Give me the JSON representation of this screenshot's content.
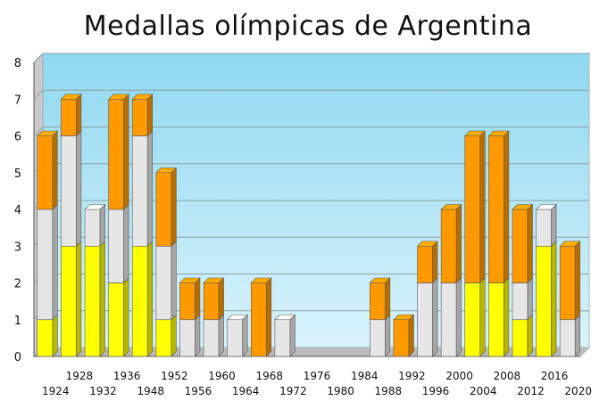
{
  "chart_data": {
    "type": "bar",
    "stacked": true,
    "title": "Medallas olímpicas de Argentina",
    "xlabel": "",
    "ylabel": "",
    "ylim": [
      0,
      8
    ],
    "yticks": [
      "0",
      "1",
      "2",
      "3",
      "4",
      "5",
      "6",
      "7",
      "8"
    ],
    "grid": true,
    "legend": "none",
    "categories": [
      "1924",
      "1928",
      "1932",
      "1936",
      "1948",
      "1952",
      "1956",
      "1960",
      "1964",
      "1968",
      "1972",
      "1976",
      "1980",
      "1984",
      "1988",
      "1992",
      "1996",
      "2000",
      "2004",
      "2008",
      "2012",
      "2016",
      "2020"
    ],
    "series": [
      {
        "color": "#ffff00",
        "values": [
          1,
          3,
          3,
          2,
          3,
          1,
          0,
          0,
          0,
          0,
          0,
          0,
          0,
          0,
          0,
          0,
          0,
          0,
          2,
          2,
          1,
          3,
          0
        ]
      },
      {
        "color": "#e6e6e6",
        "values": [
          3,
          3,
          1,
          2,
          3,
          2,
          1,
          1,
          1,
          0,
          1,
          0,
          0,
          0,
          1,
          0,
          2,
          2,
          0,
          0,
          1,
          1,
          1
        ]
      },
      {
        "color": "#ff9900",
        "values": [
          2,
          1,
          0,
          3,
          1,
          2,
          1,
          1,
          0,
          2,
          0,
          0,
          0,
          0,
          1,
          1,
          1,
          2,
          4,
          4,
          2,
          0,
          2
        ]
      }
    ]
  }
}
